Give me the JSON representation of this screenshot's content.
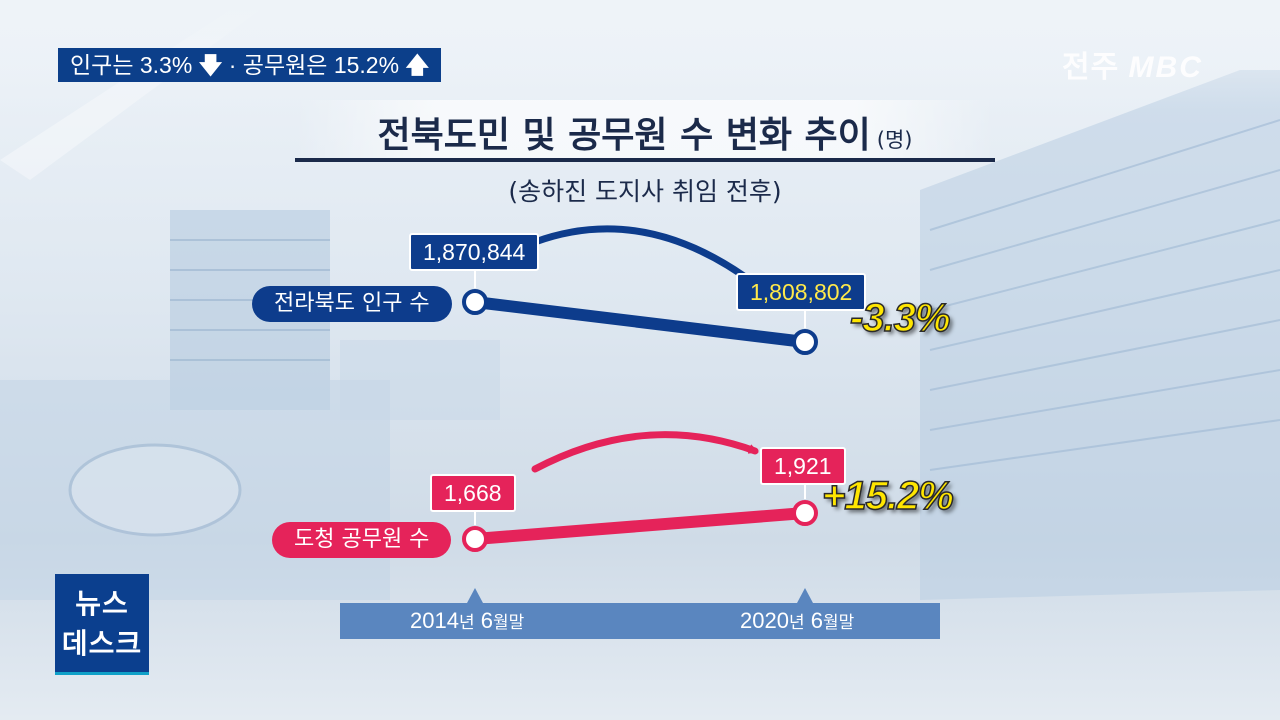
{
  "headline": {
    "part1": "인구는 3.3%",
    "down_arrow": "🡇",
    "sep": "·",
    "part2": "공무원은 15.2%",
    "up_arrow": "🡅"
  },
  "logo": {
    "region": "전주",
    "brand": "MBC"
  },
  "news_badge": {
    "line1": "뉴스",
    "line2": "데스크"
  },
  "chart_data": {
    "type": "line",
    "title": "전북도민 및 공무원 수 변화 추이",
    "unit": "(명)",
    "subtitle": "(송하진 도지사 취임 전후)",
    "categories": [
      {
        "year": "2014",
        "year_suffix": "년",
        "month": "6",
        "month_suffix": "월말"
      },
      {
        "year": "2020",
        "year_suffix": "년",
        "month": "6",
        "month_suffix": "월말"
      }
    ],
    "series": [
      {
        "name": "전라북도 인구 수",
        "values": [
          1870844,
          1808802
        ],
        "labels": [
          "1,870,844",
          "1,808,802"
        ],
        "change": "-3.3%",
        "color": "#0d3c8c"
      },
      {
        "name": "도청 공무원 수",
        "values": [
          1668,
          1921
        ],
        "labels": [
          "1,668",
          "1,921"
        ],
        "change": "+15.2%",
        "color": "#e5235a"
      }
    ]
  }
}
